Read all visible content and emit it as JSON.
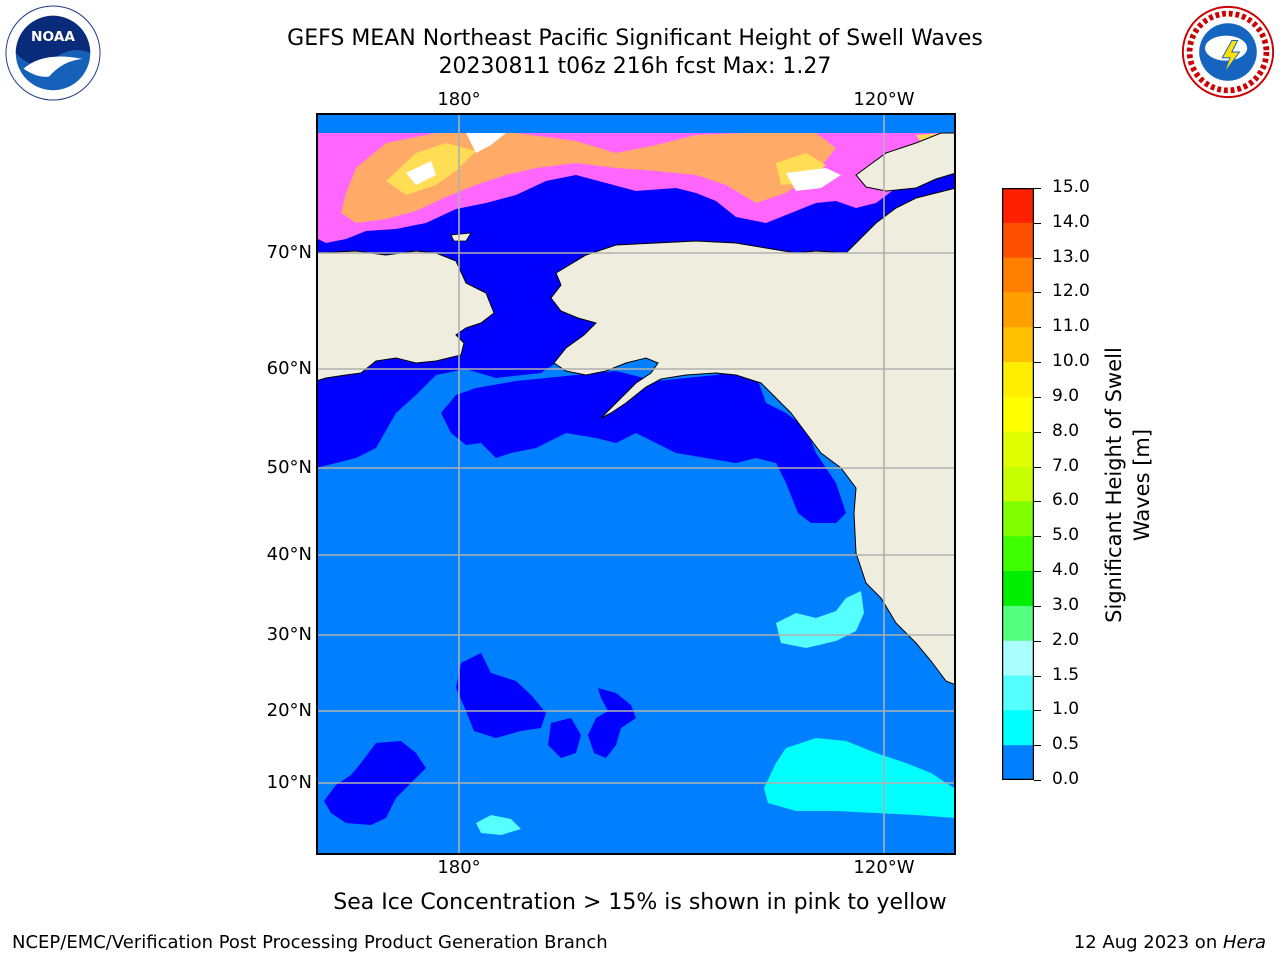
{
  "title": {
    "line1": "GEFS MEAN Northeast Pacific Significant Height of Swell Waves",
    "line2": "20230811 t06z 216h fcst   Max: 1.27"
  },
  "logos": {
    "left": "noaa-logo",
    "right": "national-weather-service-logo"
  },
  "map": {
    "lat_labels": [
      "70°N",
      "60°N",
      "50°N",
      "40°N",
      "30°N",
      "20°N",
      "10°N"
    ],
    "lon_labels_top": [
      "180°",
      "120°W"
    ],
    "lon_labels_bottom": [
      "180°",
      "120°W"
    ],
    "colors": {
      "land": "#efedde",
      "ocean_0_0_5": "#0000ff",
      "ocean_0_5_1_0": "#0080ff",
      "ocean_1_0_1_5": "#00ffff",
      "ice_low": "#ff66ff",
      "ice_mid": "#ffaa66",
      "ice_high": "#ffdd55",
      "gridline": "#b0b0b0"
    }
  },
  "colorbar": {
    "label": "Significant Height of Swell Waves [m]",
    "ticks": [
      "15.0",
      "14.0",
      "13.0",
      "12.0",
      "11.0",
      "10.0",
      "9.0",
      "8.0",
      "7.0",
      "6.0",
      "5.0",
      "4.0",
      "3.0",
      "2.0",
      "1.5",
      "1.0",
      "0.5",
      "0.0"
    ],
    "colors": [
      "#ff0000",
      "#ff2000",
      "#ff5000",
      "#ff8000",
      "#ffa000",
      "#ffc000",
      "#ffee00",
      "#ffff00",
      "#e0ff00",
      "#c8ff00",
      "#80ff00",
      "#40ff00",
      "#00ee00",
      "#55ff80",
      "#aaffff",
      "#55ffff",
      "#00ffff",
      "#0080ff",
      "#0000ff"
    ]
  },
  "footnote": "Sea Ice Concentration > 15% is shown in pink to yellow",
  "credit": "NCEP/EMC/Verification Post Processing Product Generation Branch",
  "date": {
    "text": "12 Aug 2023 on ",
    "host": "Hera"
  }
}
